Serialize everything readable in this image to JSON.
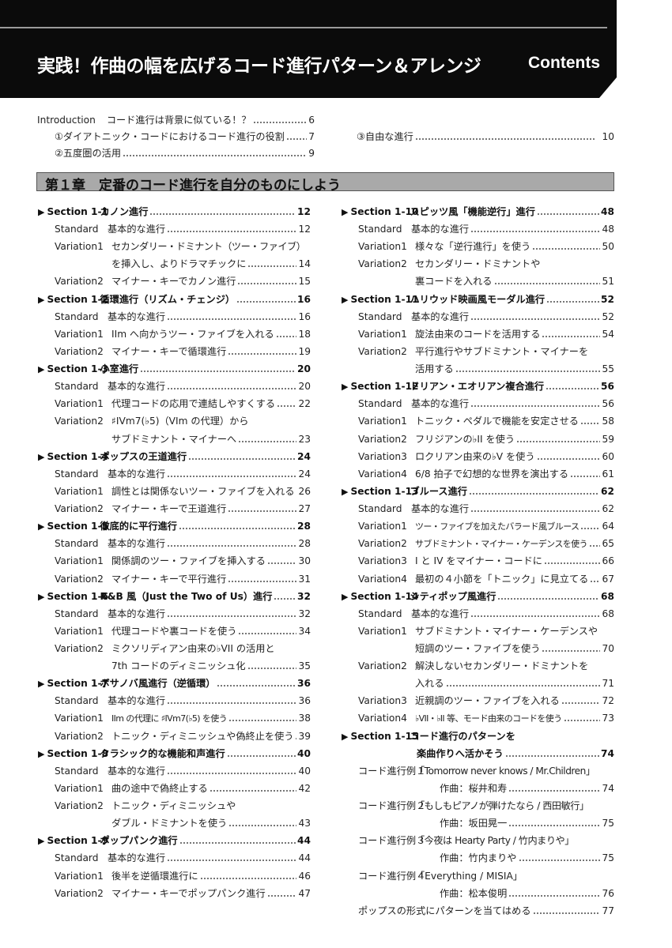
{
  "header": {
    "title": "実践！作曲の幅を広げるコード進行パターン＆アレンジ",
    "contents_label": "Contents"
  },
  "intro": {
    "label": "Introduction",
    "title": "コード進行は背景に似ている！？",
    "page": "6",
    "items": [
      {
        "title": "①ダイアトニック・コードにおけるコード進行の役割",
        "page": "7"
      },
      {
        "title": "②五度圏の活用",
        "page": "9"
      },
      {
        "title": "③自由な進行",
        "page": "10"
      }
    ]
  },
  "chapter": {
    "title": "第１章　定番のコード進行を自分のものにしよう"
  },
  "columns": [
    [
      {
        "type": "section",
        "label": "Section 1-1",
        "title": "カノン進行",
        "page": "12"
      },
      {
        "type": "sub",
        "label": "Standard",
        "title": "基本的な進行",
        "page": "12"
      },
      {
        "type": "sub",
        "label": "Variation1",
        "title": "セカンダリー・ドミナント（ツー・ファイブ）",
        "page": ""
      },
      {
        "type": "cont",
        "title": "を挿入し、よりドラマチックに",
        "page": "14"
      },
      {
        "type": "sub",
        "label": "Variation2",
        "title": "マイナー・キーでカノン進行",
        "page": "15"
      },
      {
        "type": "section",
        "label": "Section 1-2",
        "title": "循環進行（リズム・チェンジ）",
        "page": "16"
      },
      {
        "type": "sub",
        "label": "Standard",
        "title": "基本的な進行",
        "page": "16"
      },
      {
        "type": "sub",
        "label": "Variation1",
        "title": "IIm へ向かうツー・ファイブを入れる",
        "page": "18"
      },
      {
        "type": "sub",
        "label": "Variation2",
        "title": "マイナー・キーで循環進行",
        "page": "19"
      },
      {
        "type": "section",
        "label": "Section 1-3",
        "title": "小室進行",
        "page": "20"
      },
      {
        "type": "sub",
        "label": "Standard",
        "title": "基本的な進行",
        "page": "20"
      },
      {
        "type": "sub",
        "label": "Variation1",
        "title": "代理コードの応用で連結しやすくする",
        "page": "22"
      },
      {
        "type": "sub",
        "label": "Variation2",
        "title": "♯IVm7(♭5)（VIm の代理）から",
        "page": ""
      },
      {
        "type": "cont",
        "title": "サブドミナント・マイナーへ",
        "page": "23"
      },
      {
        "type": "section",
        "label": "Section 1-4",
        "title": "ポップスの王道進行",
        "page": "24"
      },
      {
        "type": "sub",
        "label": "Standard",
        "title": "基本的な進行",
        "page": "24"
      },
      {
        "type": "sub",
        "label": "Variation1",
        "title": "調性とは関係ないツー・ファイブを入れる",
        "page": "26"
      },
      {
        "type": "sub",
        "label": "Variation2",
        "title": "マイナー・キーで王道進行",
        "page": "27"
      },
      {
        "type": "section",
        "label": "Section 1-5",
        "title": "徹底的に平行進行",
        "page": "28"
      },
      {
        "type": "sub",
        "label": "Standard",
        "title": "基本的な進行",
        "page": "28"
      },
      {
        "type": "sub",
        "label": "Variation1",
        "title": "関係調のツー・ファイブを挿入する",
        "page": "30"
      },
      {
        "type": "sub",
        "label": "Variation2",
        "title": "マイナー・キーで平行進行",
        "page": "31"
      },
      {
        "type": "section",
        "label": "Section 1-6",
        "title": "R&B 風（Just the Two of Us）進行",
        "page": "32"
      },
      {
        "type": "sub",
        "label": "Standard",
        "title": "基本的な進行",
        "page": "32"
      },
      {
        "type": "sub",
        "label": "Variation1",
        "title": "代理コードや裏コードを使う",
        "page": "34"
      },
      {
        "type": "sub",
        "label": "Variation2",
        "title": "ミクソリディアン由来の♭VII の活用と",
        "page": ""
      },
      {
        "type": "cont",
        "title": "7th コードのディミニッシュ化",
        "page": "35"
      },
      {
        "type": "section",
        "label": "Section 1-7",
        "title": "ボサノバ風進行（逆循環）",
        "page": "36"
      },
      {
        "type": "sub",
        "label": "Standard",
        "title": "基本的な進行",
        "page": "36"
      },
      {
        "type": "sub",
        "label": "Variation1",
        "title": "IIm の代理に ♯IVm7(♭5) を使う",
        "page": "38"
      },
      {
        "type": "sub",
        "label": "Variation2",
        "title": "トニック・ディミニッシュや偽終止を使う",
        "page": "39"
      },
      {
        "type": "section",
        "label": "Section 1-8",
        "title": "クラシック的な機能和声進行",
        "page": "40"
      },
      {
        "type": "sub",
        "label": "Standard",
        "title": "基本的な進行",
        "page": "40"
      },
      {
        "type": "sub",
        "label": "Variation1",
        "title": "曲の途中で偽終止する",
        "page": "42"
      },
      {
        "type": "sub",
        "label": "Variation2",
        "title": "トニック・ディミニッシュや",
        "page": ""
      },
      {
        "type": "cont",
        "title": "ダブル・ドミナントを使う",
        "page": "43"
      },
      {
        "type": "section",
        "label": "Section 1-9",
        "title": "ポップパンク進行",
        "page": "44"
      },
      {
        "type": "sub",
        "label": "Standard",
        "title": "基本的な進行",
        "page": "44"
      },
      {
        "type": "sub",
        "label": "Variation1",
        "title": "後半を逆循環進行に",
        "page": "46"
      },
      {
        "type": "sub",
        "label": "Variation2",
        "title": "マイナー・キーでポップパンク進行",
        "page": "47"
      }
    ],
    [
      {
        "type": "section",
        "label": "Section 1-10",
        "title": "スピッツ風「機能逆行」進行",
        "page": "48"
      },
      {
        "type": "sub",
        "label": "Standard",
        "title": "基本的な進行",
        "page": "48"
      },
      {
        "type": "sub",
        "label": "Variation1",
        "title": "様々な「逆行進行」を使う",
        "page": "50"
      },
      {
        "type": "sub",
        "label": "Variation2",
        "title": "セカンダリー・ドミナントや",
        "page": ""
      },
      {
        "type": "cont",
        "title": "裏コードを入れる",
        "page": "51"
      },
      {
        "type": "section",
        "label": "Section 1-11",
        "title": "ハリウッド映画風モーダル進行",
        "page": "52"
      },
      {
        "type": "sub",
        "label": "Standard",
        "title": "基本的な進行",
        "page": "52"
      },
      {
        "type": "sub",
        "label": "Variation1",
        "title": "旋法由来のコードを活用する",
        "page": "54"
      },
      {
        "type": "sub",
        "label": "Variation2",
        "title": "平行進行やサブドミナント・マイナーを",
        "page": ""
      },
      {
        "type": "cont",
        "title": "活用する",
        "page": "55"
      },
      {
        "type": "section",
        "label": "Section 1-12",
        "title": "ドリアン・エオリアン複合進行",
        "page": "56"
      },
      {
        "type": "sub",
        "label": "Standard",
        "title": "基本的な進行",
        "page": "56"
      },
      {
        "type": "sub",
        "label": "Variation1",
        "title": "トニック・ペダルで機能を安定させる",
        "page": "58"
      },
      {
        "type": "sub",
        "label": "Variation2",
        "title": "フリジアンの♭II を使う",
        "page": "59"
      },
      {
        "type": "sub",
        "label": "Variation3",
        "title": "ロクリアン由来の♭V を使う",
        "page": "60"
      },
      {
        "type": "sub",
        "label": "Variation4",
        "title": "6/8 拍子で幻想的な世界を演出する",
        "page": "61"
      },
      {
        "type": "section",
        "label": "Section 1-13",
        "title": "ブルース進行",
        "page": "62"
      },
      {
        "type": "sub",
        "label": "Standard",
        "title": "基本的な進行",
        "page": "62"
      },
      {
        "type": "sub",
        "label": "Variation1",
        "title": "ツー・ファイブを加えたバラード風ブルース",
        "page": "64"
      },
      {
        "type": "sub",
        "label": "Variation2",
        "title": "サブドミナント・マイナー・ケーデンスを使う",
        "page": "65"
      },
      {
        "type": "sub",
        "label": "Variation3",
        "title": "I と IV をマイナー・コードに",
        "page": "66"
      },
      {
        "type": "sub",
        "label": "Variation4",
        "title": "最初の４小節を「トニック」に見立てる",
        "page": "67"
      },
      {
        "type": "section",
        "label": "Section 1-14",
        "title": "シティポップ風進行",
        "page": "68"
      },
      {
        "type": "sub",
        "label": "Standard",
        "title": "基本的な進行",
        "page": "68"
      },
      {
        "type": "sub",
        "label": "Variation1",
        "title": "サブドミナント・マイナー・ケーデンスや",
        "page": ""
      },
      {
        "type": "cont",
        "title": "短調のツー・ファイブを使う",
        "page": "70"
      },
      {
        "type": "sub",
        "label": "Variation2",
        "title": "解決しないセカンダリー・ドミナントを",
        "page": ""
      },
      {
        "type": "cont",
        "title": "入れる",
        "page": "71"
      },
      {
        "type": "sub",
        "label": "Variation3",
        "title": "近親調のツー・ファイブを入れる",
        "page": "72"
      },
      {
        "type": "sub",
        "label": "Variation4",
        "title": "♭VII・♭II 等、モード由来のコードを使う",
        "page": "73"
      },
      {
        "type": "section",
        "label": "Section 1-15",
        "title": "コード進行のパターンを",
        "page": ""
      },
      {
        "type": "section-cont",
        "title": "楽曲作りへ活かそう",
        "page": "74"
      },
      {
        "type": "sub",
        "label": "コード進行例１",
        "title": "「Tomorrow never knows / Mr.Children」",
        "page": ""
      },
      {
        "type": "credit",
        "title": "作曲：桜井和寿",
        "page": "74"
      },
      {
        "type": "sub",
        "label": "コード進行例２",
        "title": "「もしもピアノが弾けたなら / 西田敏行」",
        "page": ""
      },
      {
        "type": "credit",
        "title": "作曲：坂田晃一",
        "page": "75"
      },
      {
        "type": "sub",
        "label": "コード進行例３",
        "title": "「今夜は Hearty Party / 竹内まりや」",
        "page": ""
      },
      {
        "type": "credit",
        "title": "作曲：竹内まりや",
        "page": "75"
      },
      {
        "type": "sub",
        "label": "コード進行例４",
        "title": "「Everything / MISIA」",
        "page": ""
      },
      {
        "type": "credit",
        "title": "作曲：松本俊明",
        "page": "76"
      },
      {
        "type": "plain",
        "title": "ポップスの形式にパターンを当てはめる",
        "page": "77"
      }
    ]
  ]
}
